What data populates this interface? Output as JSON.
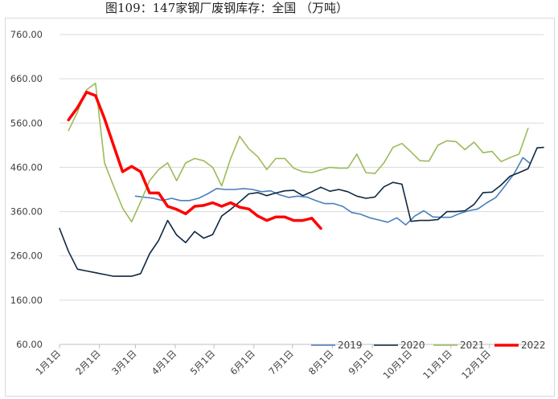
{
  "title": "图109：147家钢厂废钢库存：全国 （万吨）",
  "chart_data": {
    "type": "line",
    "title": "图109：147家钢厂废钢库存：全国 （万吨）",
    "xlabel": "",
    "ylabel": "",
    "ylim": [
      60,
      760
    ],
    "y_ticks": [
      "760.00",
      "660.00",
      "560.00",
      "460.00",
      "360.00",
      "260.00",
      "160.00",
      "60.00"
    ],
    "x_categories": [
      "1月1日",
      "2月1日",
      "3月1日",
      "4月1日",
      "5月1日",
      "6月1日",
      "7月1日",
      "8月1日",
      "9月1日",
      "10月1日",
      "11月1日",
      "12月1日"
    ],
    "x_range_days": [
      0,
      365
    ],
    "grid": "horizontal",
    "legend_position": "bottom-right",
    "series": [
      {
        "name": "2019",
        "color": "#4a7ebb",
        "width": 1.6,
        "points": [
          [
            59,
            395
          ],
          [
            73,
            390
          ],
          [
            80,
            385
          ],
          [
            87,
            390
          ],
          [
            94,
            385
          ],
          [
            101,
            385
          ],
          [
            108,
            390
          ],
          [
            115,
            400
          ],
          [
            122,
            412
          ],
          [
            129,
            410
          ],
          [
            136,
            410
          ],
          [
            143,
            412
          ],
          [
            150,
            410
          ],
          [
            157,
            405
          ],
          [
            164,
            407
          ],
          [
            171,
            398
          ],
          [
            178,
            392
          ],
          [
            185,
            395
          ],
          [
            192,
            393
          ],
          [
            199,
            385
          ],
          [
            206,
            378
          ],
          [
            213,
            378
          ],
          [
            220,
            372
          ],
          [
            227,
            358
          ],
          [
            234,
            354
          ],
          [
            241,
            346
          ],
          [
            248,
            341
          ],
          [
            255,
            336
          ],
          [
            262,
            346
          ],
          [
            269,
            330
          ],
          [
            276,
            350
          ],
          [
            283,
            362
          ],
          [
            290,
            348
          ],
          [
            297,
            347
          ],
          [
            304,
            347
          ],
          [
            311,
            356
          ],
          [
            318,
            362
          ],
          [
            325,
            366
          ],
          [
            332,
            380
          ],
          [
            339,
            392
          ],
          [
            346,
            418
          ],
          [
            353,
            445
          ],
          [
            360,
            482
          ],
          [
            365,
            470
          ]
        ]
      },
      {
        "name": "2020",
        "color": "#0e2841",
        "width": 1.6,
        "points": [
          [
            0,
            322
          ],
          [
            7,
            270
          ],
          [
            14,
            230
          ],
          [
            21,
            226
          ],
          [
            28,
            222
          ],
          [
            35,
            218
          ],
          [
            42,
            214
          ],
          [
            49,
            214
          ],
          [
            56,
            214
          ],
          [
            63,
            220
          ],
          [
            70,
            265
          ],
          [
            77,
            295
          ],
          [
            84,
            340
          ],
          [
            91,
            307
          ],
          [
            98,
            290
          ],
          [
            105,
            315
          ],
          [
            112,
            300
          ],
          [
            119,
            308
          ],
          [
            126,
            350
          ],
          [
            133,
            365
          ],
          [
            140,
            382
          ],
          [
            147,
            400
          ],
          [
            154,
            403
          ],
          [
            161,
            396
          ],
          [
            168,
            402
          ],
          [
            175,
            407
          ],
          [
            182,
            408
          ],
          [
            189,
            396
          ],
          [
            196,
            405
          ],
          [
            203,
            415
          ],
          [
            210,
            406
          ],
          [
            217,
            410
          ],
          [
            224,
            405
          ],
          [
            231,
            395
          ],
          [
            238,
            390
          ],
          [
            245,
            393
          ],
          [
            252,
            416
          ],
          [
            259,
            426
          ],
          [
            266,
            422
          ],
          [
            273,
            338
          ],
          [
            280,
            340
          ],
          [
            287,
            340
          ],
          [
            294,
            342
          ],
          [
            301,
            360
          ],
          [
            308,
            360
          ],
          [
            315,
            362
          ],
          [
            322,
            376
          ],
          [
            329,
            403
          ],
          [
            336,
            404
          ],
          [
            343,
            420
          ],
          [
            350,
            440
          ],
          [
            357,
            448
          ],
          [
            364,
            457
          ],
          [
            371,
            504
          ],
          [
            376,
            505
          ]
        ]
      },
      {
        "name": "2021",
        "color": "#9bbb59",
        "width": 1.6,
        "points": [
          [
            7,
            543
          ],
          [
            14,
            585
          ],
          [
            21,
            635
          ],
          [
            28,
            650
          ],
          [
            35,
            470
          ],
          [
            42,
            418
          ],
          [
            49,
            368
          ],
          [
            56,
            337
          ],
          [
            63,
            382
          ],
          [
            70,
            430
          ],
          [
            77,
            455
          ],
          [
            84,
            470
          ],
          [
            91,
            430
          ],
          [
            98,
            470
          ],
          [
            105,
            480
          ],
          [
            112,
            475
          ],
          [
            119,
            460
          ],
          [
            126,
            418
          ],
          [
            133,
            480
          ],
          [
            140,
            530
          ],
          [
            147,
            502
          ],
          [
            154,
            484
          ],
          [
            161,
            455
          ],
          [
            168,
            480
          ],
          [
            175,
            480
          ],
          [
            182,
            458
          ],
          [
            189,
            450
          ],
          [
            196,
            448
          ],
          [
            203,
            454
          ],
          [
            210,
            460
          ],
          [
            217,
            458
          ],
          [
            224,
            458
          ],
          [
            231,
            490
          ],
          [
            238,
            448
          ],
          [
            245,
            446
          ],
          [
            252,
            470
          ],
          [
            259,
            505
          ],
          [
            266,
            514
          ],
          [
            273,
            495
          ],
          [
            280,
            475
          ],
          [
            287,
            474
          ],
          [
            294,
            510
          ],
          [
            301,
            520
          ],
          [
            308,
            518
          ],
          [
            315,
            500
          ],
          [
            322,
            517
          ],
          [
            329,
            493
          ],
          [
            336,
            496
          ],
          [
            343,
            473
          ],
          [
            350,
            482
          ],
          [
            357,
            490
          ],
          [
            364,
            548
          ]
        ]
      },
      {
        "name": "2022",
        "color": "#ff0000",
        "width": 3.5,
        "points": [
          [
            7,
            567
          ],
          [
            14,
            595
          ],
          [
            21,
            630
          ],
          [
            28,
            622
          ],
          [
            35,
            570
          ],
          [
            42,
            510
          ],
          [
            49,
            450
          ],
          [
            56,
            462
          ],
          [
            63,
            450
          ],
          [
            70,
            402
          ],
          [
            77,
            402
          ],
          [
            84,
            372
          ],
          [
            91,
            365
          ],
          [
            98,
            355
          ],
          [
            105,
            372
          ],
          [
            112,
            374
          ],
          [
            119,
            380
          ],
          [
            126,
            372
          ],
          [
            133,
            380
          ],
          [
            140,
            370
          ],
          [
            147,
            366
          ],
          [
            154,
            350
          ],
          [
            161,
            340
          ],
          [
            168,
            348
          ],
          [
            175,
            348
          ],
          [
            182,
            340
          ],
          [
            189,
            340
          ],
          [
            196,
            345
          ],
          [
            203,
            322
          ]
        ]
      }
    ]
  }
}
